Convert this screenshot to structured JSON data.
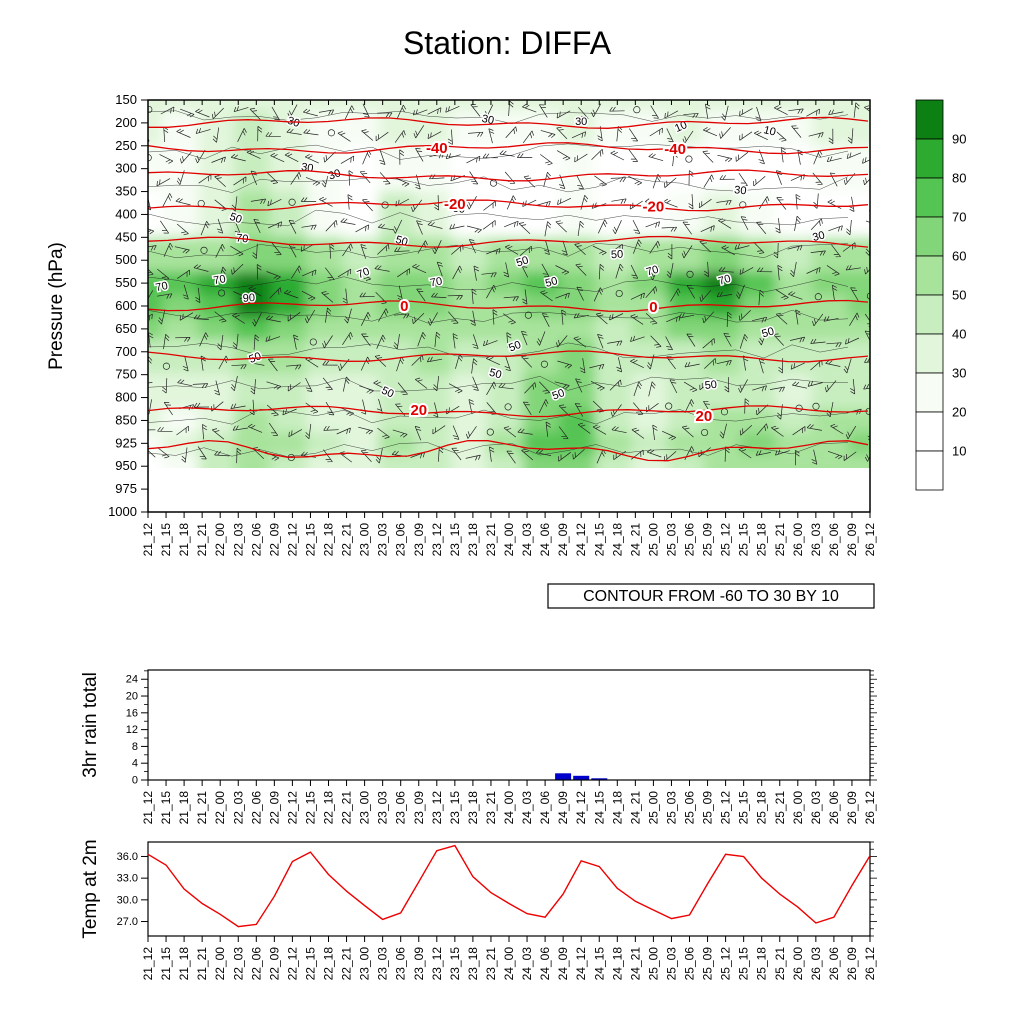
{
  "title": "Station: DIFFA",
  "contour_note": "CONTOUR FROM -60 TO 30 BY 10",
  "colors": {
    "rain_bar": "#0000cc",
    "temp_line": "#ee0000",
    "contour_red": "#e00000",
    "barb": "#222222"
  },
  "time_labels": [
    "21_12",
    "21_15",
    "21_18",
    "21_21",
    "22_00",
    "22_03",
    "22_06",
    "22_09",
    "22_12",
    "22_15",
    "22_18",
    "22_21",
    "23_00",
    "23_03",
    "23_06",
    "23_09",
    "23_12",
    "23_15",
    "23_18",
    "23_21",
    "24_00",
    "24_03",
    "24_06",
    "24_09",
    "24_12",
    "24_15",
    "24_18",
    "24_21",
    "25_00",
    "25_03",
    "25_06",
    "25_09",
    "25_12",
    "25_15",
    "25_18",
    "25_21",
    "26_00",
    "26_03",
    "26_06",
    "26_09",
    "26_12"
  ],
  "chart_data": [
    {
      "type": "heatmap",
      "panel": "pressure-time-cross-section",
      "title": "Humidity (%) shaded, temperature contours in red, wind barbs",
      "ylabel": "Pressure (hPa)",
      "pressure_ticks": [
        "150",
        "200",
        "250",
        "300",
        "350",
        "400",
        "450",
        "500",
        "550",
        "600",
        "650",
        "700",
        "750",
        "800",
        "850",
        "925",
        "950",
        "975",
        "1000"
      ],
      "legend_labels": [
        "90",
        "80",
        "70",
        "60",
        "50",
        "40",
        "30",
        "20",
        "10"
      ],
      "legend_colors": [
        "#0c8013",
        "#2cab30",
        "#54c452",
        "#82d578",
        "#a8e39c",
        "#c8eec0",
        "#e2f6dc",
        "#f7fdf5",
        "#ffffff",
        "#ffffff"
      ],
      "humidity_grid": {
        "times": [
          "21_12",
          "21_18",
          "22_00",
          "22_06",
          "22_12",
          "22_18",
          "23_00",
          "23_06",
          "23_12",
          "23_18",
          "24_00",
          "24_06",
          "24_12",
          "24_18",
          "25_00",
          "25_06",
          "25_12",
          "25_18",
          "26_00",
          "26_06",
          "26_12"
        ],
        "levels_hpa": [
          150,
          200,
          300,
          400,
          500,
          550,
          600,
          650,
          700,
          800,
          850,
          925,
          950
        ],
        "values_percent": [
          [
            35,
            32,
            30,
            34,
            30,
            33,
            31,
            30,
            34,
            31,
            30,
            33,
            30,
            31,
            34,
            30,
            31,
            34,
            30,
            33,
            34
          ],
          [
            30,
            26,
            30,
            40,
            34,
            28,
            24,
            30,
            34,
            24,
            20,
            26,
            30,
            24,
            20,
            30,
            26,
            20,
            26,
            30,
            30
          ],
          [
            22,
            26,
            36,
            42,
            34,
            24,
            14,
            20,
            26,
            14,
            10,
            16,
            20,
            10,
            10,
            16,
            10,
            10,
            16,
            20,
            20
          ],
          [
            15,
            20,
            32,
            56,
            44,
            24,
            14,
            42,
            30,
            14,
            10,
            16,
            20,
            14,
            10,
            26,
            30,
            20,
            10,
            16,
            15
          ],
          [
            55,
            50,
            56,
            66,
            60,
            50,
            45,
            52,
            56,
            45,
            50,
            56,
            50,
            45,
            50,
            56,
            60,
            50,
            45,
            50,
            55
          ],
          [
            76,
            70,
            82,
            95,
            84,
            64,
            54,
            60,
            66,
            54,
            60,
            70,
            60,
            54,
            62,
            82,
            90,
            70,
            56,
            60,
            66
          ],
          [
            70,
            65,
            76,
            92,
            80,
            60,
            54,
            60,
            62,
            54,
            58,
            68,
            60,
            52,
            58,
            76,
            86,
            66,
            54,
            58,
            62
          ],
          [
            60,
            55,
            62,
            72,
            66,
            54,
            50,
            56,
            58,
            50,
            52,
            58,
            54,
            48,
            52,
            62,
            66,
            56,
            50,
            52,
            56
          ],
          [
            46,
            40,
            46,
            56,
            50,
            44,
            40,
            46,
            50,
            42,
            46,
            56,
            60,
            44,
            42,
            48,
            50,
            46,
            40,
            46,
            48
          ],
          [
            36,
            30,
            36,
            46,
            40,
            34,
            30,
            40,
            46,
            34,
            40,
            60,
            66,
            40,
            34,
            40,
            46,
            40,
            34,
            40,
            42
          ],
          [
            30,
            28,
            36,
            50,
            44,
            34,
            30,
            46,
            40,
            30,
            46,
            66,
            70,
            46,
            34,
            46,
            50,
            56,
            46,
            50,
            52
          ],
          [
            20,
            30,
            46,
            56,
            50,
            40,
            34,
            50,
            44,
            34,
            50,
            70,
            72,
            50,
            40,
            50,
            56,
            60,
            56,
            58,
            60
          ],
          [
            10,
            26,
            40,
            50,
            44,
            38,
            32,
            46,
            40,
            32,
            46,
            60,
            62,
            46,
            38,
            46,
            50,
            56,
            50,
            52,
            56
          ]
        ]
      },
      "temp_contours": {
        "from": -60,
        "to": 30,
        "by": 10,
        "lines": [
          {
            "value": -50,
            "level_index": 1.0
          },
          {
            "value": -40,
            "level_index": 2.1
          },
          {
            "value": -30,
            "level_index": 3.3
          },
          {
            "value": -20,
            "level_index": 4.6
          },
          {
            "value": -10,
            "level_index": 6.2
          },
          {
            "value": 0,
            "level_index": 9.0
          },
          {
            "value": 10,
            "level_index": 11.2
          },
          {
            "value": 20,
            "level_index": 13.6
          },
          {
            "value": 30,
            "level_index": 15.3
          }
        ],
        "labels": [
          {
            "value": "-40",
            "tf": 0.4,
            "li": 2.1
          },
          {
            "value": "-40",
            "tf": 0.73,
            "li": 2.15
          },
          {
            "value": "-20",
            "tf": 0.425,
            "li": 4.55
          },
          {
            "value": "-20",
            "tf": 0.7,
            "li": 4.65
          },
          {
            "value": "0",
            "tf": 0.355,
            "li": 9.0
          },
          {
            "value": "0",
            "tf": 0.7,
            "li": 9.05
          },
          {
            "value": "20",
            "tf": 0.375,
            "li": 13.55
          },
          {
            "value": "20",
            "tf": 0.77,
            "li": 13.8
          }
        ]
      },
      "humidity_contour_labels": [
        {
          "tf": 0.02,
          "li": 8.3,
          "text": "70"
        },
        {
          "tf": 0.14,
          "li": 8.8,
          "text": "90"
        },
        {
          "tf": 0.1,
          "li": 8.0,
          "text": "70"
        },
        {
          "tf": 0.12,
          "li": 5.3,
          "text": "50"
        },
        {
          "tf": 0.13,
          "li": 6.2,
          "text": "70"
        },
        {
          "tf": 0.2,
          "li": 1.1,
          "text": "30"
        },
        {
          "tf": 0.22,
          "li": 3.1,
          "text": "30"
        },
        {
          "tf": 0.26,
          "li": 3.4,
          "text": "30"
        },
        {
          "tf": 0.35,
          "li": 6.3,
          "text": "50"
        },
        {
          "tf": 0.3,
          "li": 7.7,
          "text": "70"
        },
        {
          "tf": 0.4,
          "li": 8.1,
          "text": "70"
        },
        {
          "tf": 0.47,
          "li": 1.0,
          "text": "30"
        },
        {
          "tf": 0.43,
          "li": 4.9,
          "text": "50"
        },
        {
          "tf": 0.52,
          "li": 7.2,
          "text": "50"
        },
        {
          "tf": 0.51,
          "li": 10.9,
          "text": "50"
        },
        {
          "tf": 0.56,
          "li": 8.1,
          "text": "50"
        },
        {
          "tf": 0.6,
          "li": 1.1,
          "text": "30"
        },
        {
          "tf": 0.65,
          "li": 6.9,
          "text": "50"
        },
        {
          "tf": 0.7,
          "li": 7.6,
          "text": "70"
        },
        {
          "tf": 0.74,
          "li": 1.3,
          "text": "10"
        },
        {
          "tf": 0.8,
          "li": 8.0,
          "text": "70"
        },
        {
          "tf": 0.82,
          "li": 4.1,
          "text": "30"
        },
        {
          "tf": 0.86,
          "li": 1.5,
          "text": "10"
        },
        {
          "tf": 0.93,
          "li": 6.1,
          "text": "30"
        },
        {
          "tf": 0.86,
          "li": 10.3,
          "text": "50"
        },
        {
          "tf": 0.57,
          "li": 13.0,
          "text": "50"
        },
        {
          "tf": 0.33,
          "li": 12.9,
          "text": "50"
        },
        {
          "tf": 0.15,
          "li": 11.4,
          "text": "50"
        },
        {
          "tf": 0.48,
          "li": 12.1,
          "text": "50"
        },
        {
          "tf": 0.78,
          "li": 12.6,
          "text": "50"
        }
      ]
    },
    {
      "type": "bar",
      "panel": "rain",
      "ylabel": "3hr rain total",
      "y_ticks": [
        0,
        4,
        8,
        12,
        16,
        20,
        24
      ],
      "ylim": [
        0,
        26.2
      ],
      "values": [
        0,
        0,
        0,
        0,
        0,
        0,
        0,
        0,
        0,
        0,
        0,
        0,
        0,
        0,
        0,
        0,
        0,
        0,
        0,
        0,
        0,
        0,
        0,
        1.6,
        1.0,
        0.4,
        0,
        0,
        0,
        0,
        0,
        0,
        0,
        0,
        0,
        0,
        0,
        0,
        0,
        0,
        0
      ]
    },
    {
      "type": "line",
      "panel": "temperature",
      "ylabel": "Temp at 2m",
      "y_ticks": [
        "36.0",
        "33.0",
        "30.0",
        "27.0"
      ],
      "ylim": [
        25,
        38
      ],
      "values": [
        36.3,
        34.8,
        31.5,
        29.5,
        28.0,
        26.3,
        26.6,
        30.5,
        35.3,
        36.6,
        33.5,
        31.2,
        29.2,
        27.3,
        28.2,
        32.5,
        36.8,
        37.5,
        33.2,
        31.0,
        29.5,
        28.1,
        27.6,
        30.8,
        35.4,
        34.6,
        31.6,
        29.8,
        28.6,
        27.4,
        27.9,
        32.2,
        36.3,
        36.0,
        33.0,
        30.8,
        29.0,
        26.8,
        27.6,
        32.0,
        36.1
      ]
    }
  ]
}
